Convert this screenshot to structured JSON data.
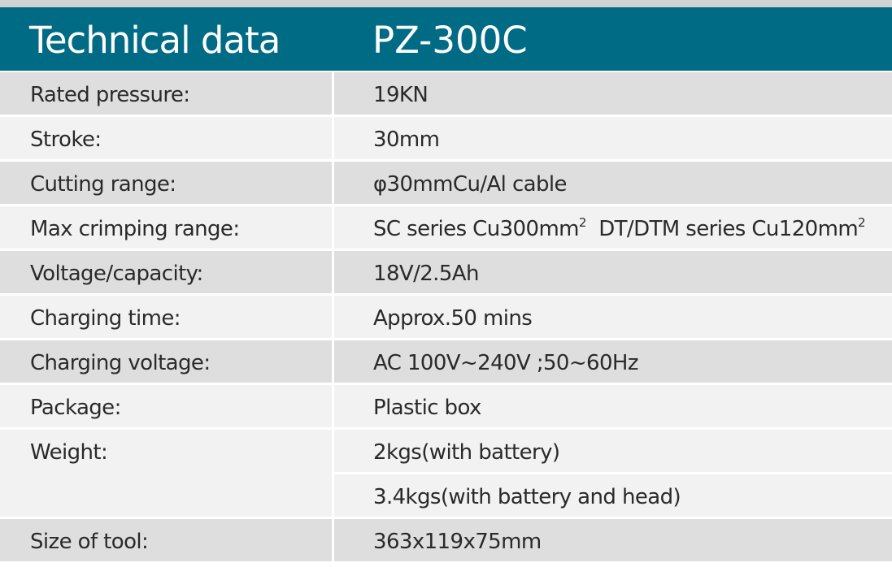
{
  "header": {
    "title": "Technical data",
    "model": "PZ-300C"
  },
  "colors": {
    "header_bg": "#006b84",
    "header_text": "#ffffff",
    "row_dark": "#dedede",
    "row_light": "#f2f2f2",
    "top_strip": "#d2d2d2"
  },
  "specs": {
    "rated_pressure": {
      "label": "Rated pressure:",
      "value": "19KN"
    },
    "stroke": {
      "label": "Stroke:",
      "value": "30mm"
    },
    "cutting_range": {
      "label": "Cutting range:",
      "value": "φ30mmCu/Al cable"
    },
    "max_crimping": {
      "label": "Max crimping range:",
      "value_a": "SC series Cu300mm",
      "value_b": "DT/DTM series Cu120mm",
      "superscript": "2"
    },
    "voltage": {
      "label": "Voltage/capacity:",
      "value": "18V/2.5Ah"
    },
    "charging_time": {
      "label": "Charging time:",
      "value": "Approx.50 mins"
    },
    "charging_voltage": {
      "label": "Charging voltage:",
      "value": "AC 100V~240V ;50~60Hz"
    },
    "package": {
      "label": "Package:",
      "value": "Plastic box"
    },
    "weight": {
      "label": "Weight:",
      "value_1": "2kgs(with battery)",
      "value_2": "3.4kgs(with battery and head)"
    },
    "size": {
      "label": "Size of tool:",
      "value": "363x119x75mm"
    }
  }
}
